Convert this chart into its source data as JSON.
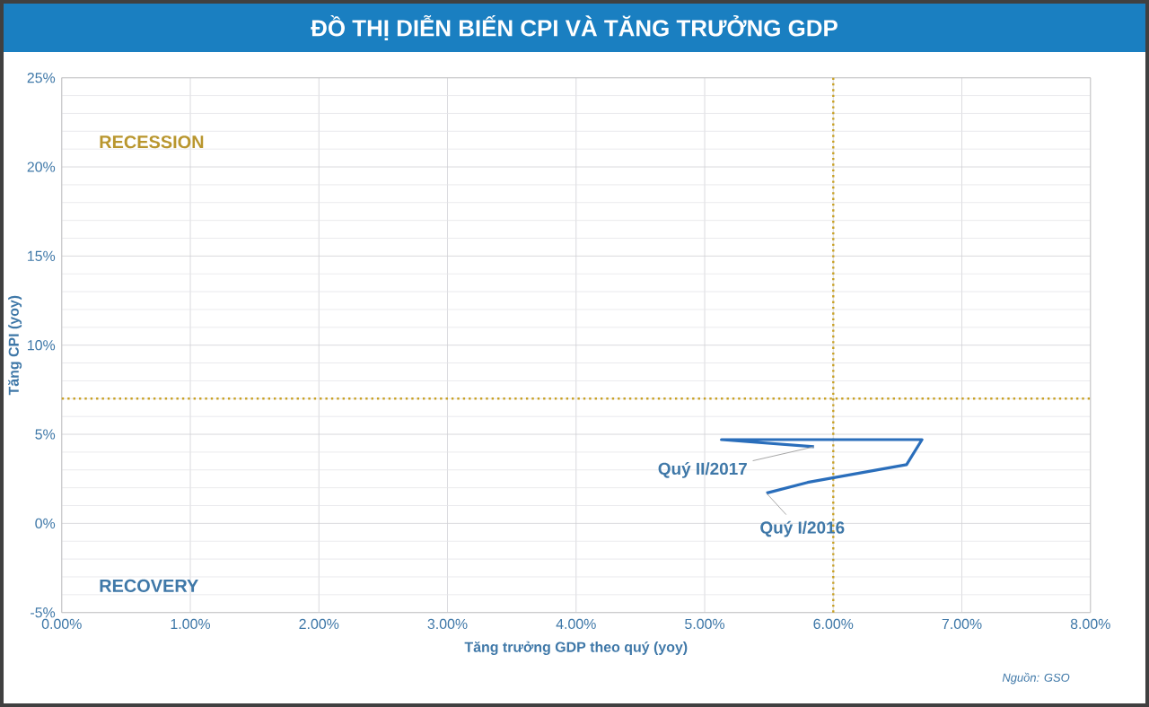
{
  "chart_data": {
    "type": "line",
    "title": "ĐỒ THỊ DIỄN BIẾN CPI VÀ TĂNG TRƯỞNG GDP",
    "xlabel": "Tăng trưởng GDP theo quý (yoy)",
    "ylabel": "Tăng CPI (yoy)",
    "series": [
      {
        "color": "#2a6ebb",
        "x": [
          5.48,
          5.8,
          6.57,
          6.69,
          5.13,
          5.85
        ],
        "values": [
          1.7,
          2.3,
          3.3,
          4.7,
          4.7,
          4.3
        ]
      }
    ],
    "xlim": [
      0,
      8
    ],
    "ylim": [
      -5,
      25
    ],
    "xticks": [
      {
        "value": 0,
        "label": "0.00%"
      },
      {
        "value": 1,
        "label": "1.00%"
      },
      {
        "value": 2,
        "label": "2.00%"
      },
      {
        "value": 3,
        "label": "3.00%"
      },
      {
        "value": 4,
        "label": "4.00%"
      },
      {
        "value": 5,
        "label": "5.00%"
      },
      {
        "value": 6,
        "label": "6.00%"
      },
      {
        "value": 7,
        "label": "7.00%"
      },
      {
        "value": 8,
        "label": "8.00%"
      }
    ],
    "yticks": [
      {
        "value": -5,
        "label": "-5%"
      },
      {
        "value": 0,
        "label": "0%"
      },
      {
        "value": 5,
        "label": "5%"
      },
      {
        "value": 10,
        "label": "10%"
      },
      {
        "value": 15,
        "label": "15%"
      },
      {
        "value": 20,
        "label": "20%"
      },
      {
        "value": 25,
        "label": "25%"
      }
    ],
    "ref_lines": [
      {
        "axis": "x",
        "value": 6,
        "color": "#c9a227",
        "line_style": "dotted"
      },
      {
        "axis": "y",
        "value": 7,
        "color": "#c9a227",
        "line_style": "dotted"
      }
    ],
    "annotations": [
      {
        "text": "Quý II/2017",
        "x": 5.85,
        "y": 4.3
      },
      {
        "text": "Quý I/2016",
        "x": 5.48,
        "y": 1.7
      },
      "RECESSION",
      "RECOVERY",
      "Nguồn: GSO"
    ],
    "grid": true,
    "marker": "none",
    "line_style": "solid"
  }
}
